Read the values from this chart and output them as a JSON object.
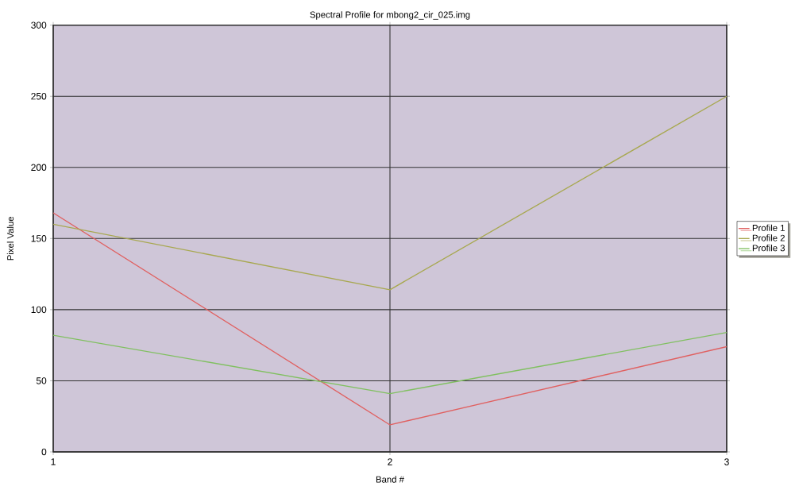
{
  "chart_data": {
    "type": "line",
    "title": "Spectral Profile for mbong2_cir_025.img",
    "xlabel": "Band #",
    "ylabel": "Pixel Value",
    "x": [
      1,
      2,
      3
    ],
    "series": [
      {
        "name": "Profile 1",
        "color": "#e06060",
        "values": [
          168,
          19,
          74
        ]
      },
      {
        "name": "Profile 2",
        "color": "#a8a850",
        "values": [
          160,
          114,
          250
        ]
      },
      {
        "name": "Profile 3",
        "color": "#80c060",
        "values": [
          82,
          41,
          84
        ]
      }
    ],
    "xlim": [
      1,
      3
    ],
    "xticks": [
      1,
      2,
      3
    ],
    "ylim": [
      0,
      300
    ],
    "yticks": [
      0,
      50,
      100,
      150,
      200,
      250,
      300
    ],
    "grid": true,
    "legend": "right",
    "marker": "none",
    "line_style": "solid"
  }
}
